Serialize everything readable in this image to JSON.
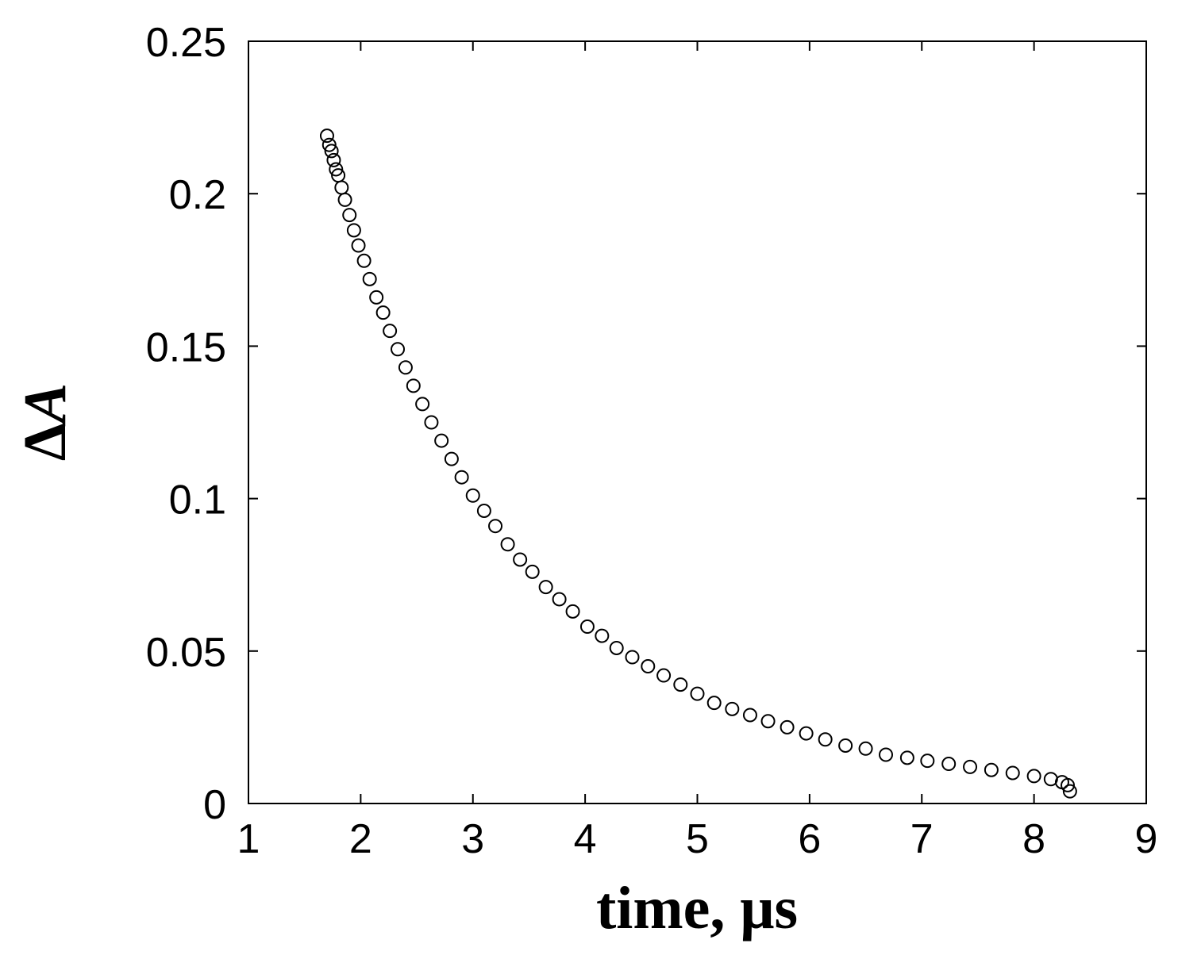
{
  "chart_data": {
    "type": "scatter",
    "title": "",
    "xlabel": "time, μs",
    "ylabel_prefix": "Δ",
    "ylabel_var": "A",
    "xlim": [
      1,
      9
    ],
    "ylim": [
      0,
      0.25
    ],
    "xticks": [
      1,
      2,
      3,
      4,
      5,
      6,
      7,
      8,
      9
    ],
    "yticks": [
      0,
      0.05,
      0.1,
      0.15,
      0.2,
      0.25
    ],
    "xtick_labels": [
      "1",
      "2",
      "3",
      "4",
      "5",
      "6",
      "7",
      "8",
      "9"
    ],
    "ytick_labels": [
      "0",
      "0.05",
      "0.1",
      "0.15",
      "0.2",
      "0.25"
    ],
    "grid": false,
    "legend": "none",
    "marker": "open-circle",
    "series": [
      {
        "x": [
          1.7,
          1.72,
          1.74,
          1.76,
          1.78,
          1.8,
          1.83,
          1.86,
          1.9,
          1.94,
          1.98,
          2.03,
          2.08,
          2.14,
          2.2,
          2.26,
          2.33,
          2.4,
          2.47,
          2.55,
          2.63,
          2.72,
          2.81,
          2.9,
          3.0,
          3.1,
          3.2,
          3.31,
          3.42,
          3.53,
          3.65,
          3.77,
          3.89,
          4.02,
          4.15,
          4.28,
          4.42,
          4.56,
          4.7,
          4.85,
          5.0,
          5.15,
          5.31,
          5.47,
          5.63,
          5.8,
          5.97,
          6.14,
          6.32,
          6.5,
          6.68,
          6.87,
          7.05,
          7.24,
          7.43,
          7.62,
          7.81,
          8.0,
          8.15,
          8.25,
          8.3,
          8.32
        ],
        "y": [
          0.219,
          0.216,
          0.214,
          0.211,
          0.208,
          0.206,
          0.202,
          0.198,
          0.193,
          0.188,
          0.183,
          0.178,
          0.172,
          0.166,
          0.161,
          0.155,
          0.149,
          0.143,
          0.137,
          0.131,
          0.125,
          0.119,
          0.113,
          0.107,
          0.101,
          0.096,
          0.091,
          0.085,
          0.08,
          0.076,
          0.071,
          0.067,
          0.063,
          0.058,
          0.055,
          0.051,
          0.048,
          0.045,
          0.042,
          0.039,
          0.036,
          0.033,
          0.031,
          0.029,
          0.027,
          0.025,
          0.023,
          0.021,
          0.019,
          0.018,
          0.016,
          0.015,
          0.014,
          0.013,
          0.012,
          0.011,
          0.01,
          0.009,
          0.008,
          0.007,
          0.006,
          0.004
        ]
      }
    ]
  }
}
